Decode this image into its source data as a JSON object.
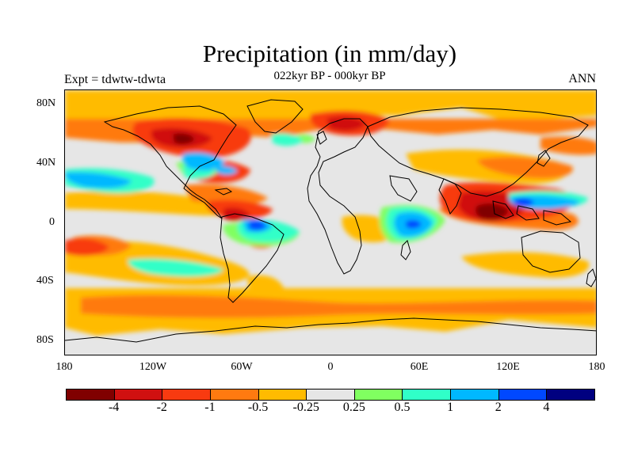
{
  "title": "Precipitation (in mm/day)",
  "subtitle": "022kyr BP - 000kyr BP",
  "left_label": "Expt = tdwtw-tdwta",
  "right_label": "ANN",
  "map": {
    "background_color": "#e6e6e6",
    "coastline_color": "#000000"
  },
  "y_ticks": [
    "80N",
    "40N",
    "0",
    "40S",
    "80S"
  ],
  "x_ticks": [
    "180",
    "120W",
    "60W",
    "0",
    "60E",
    "120E",
    "180"
  ],
  "colorbar": {
    "colors": [
      "#800000",
      "#d01010",
      "#f83a10",
      "#ff7a10",
      "#ffbb00",
      "#e6e6e6",
      "#80ff60",
      "#30ffc8",
      "#00b8ff",
      "#0048ff",
      "#000080"
    ],
    "labels": [
      "-4",
      "-2",
      "-1",
      "-0.5",
      "-0.25",
      "0.25",
      "0.5",
      "1",
      "2",
      "4"
    ]
  }
}
